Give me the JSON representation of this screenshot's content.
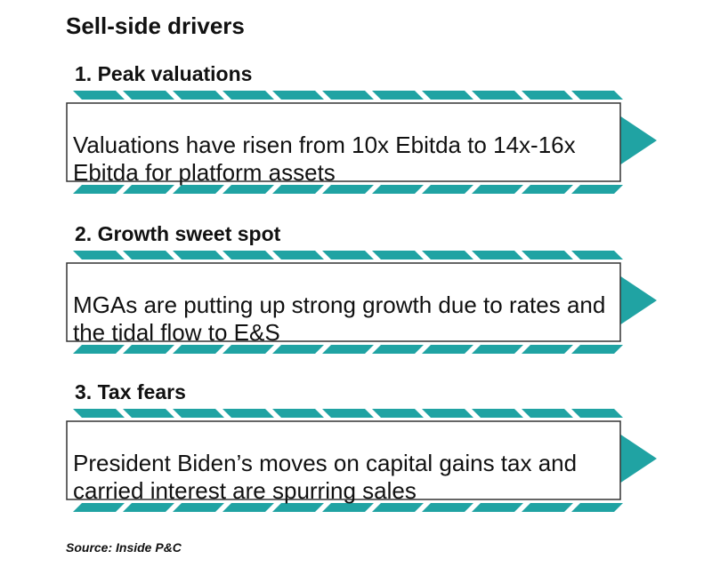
{
  "title": "Sell-side drivers",
  "accent_color": "#20a3a3",
  "drivers": [
    {
      "heading": "1. Peak valuations",
      "text": "Valuations have risen from 10x Ebitda to 14x-16x Ebitda for platform assets"
    },
    {
      "heading": "2. Growth sweet spot",
      "text": "MGAs are putting up strong growth due to rates and the tidal flow to E&S"
    },
    {
      "heading": "3. Tax fears",
      "text": "President Biden’s moves on capital gains tax and carried interest are spurring sales"
    }
  ],
  "source": "Source: Inside P&C"
}
